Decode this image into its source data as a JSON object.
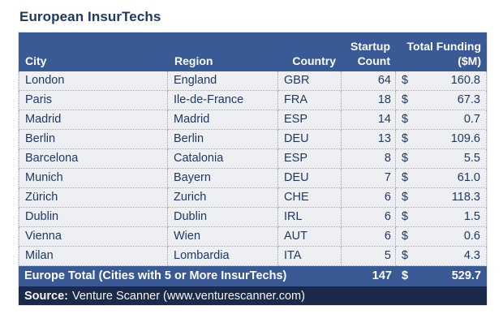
{
  "title": "European InsurTechs",
  "colors": {
    "header_bg": "#3A5A96",
    "total_bg": "#3A5A96",
    "source_bg": "#1B294B",
    "row_bg": "#EDEFF3",
    "text_navy": "#203864",
    "header_text": "#FFFFFF",
    "dotted_border": "#8FA6CC"
  },
  "table": {
    "headers": {
      "city": "City",
      "region": "Region",
      "country": "Country",
      "count": "Startup Count",
      "funding": "Total Funding ($M)"
    },
    "currency_symbol": "$",
    "rows": [
      {
        "city": "London",
        "region": "England",
        "country": "GBR",
        "count": "64",
        "funding": "160.8"
      },
      {
        "city": "Paris",
        "region": "Ile-de-France",
        "country": "FRA",
        "count": "18",
        "funding": "67.3"
      },
      {
        "city": "Madrid",
        "region": "Madrid",
        "country": "ESP",
        "count": "14",
        "funding": "0.7"
      },
      {
        "city": "Berlin",
        "region": "Berlin",
        "country": "DEU",
        "count": "13",
        "funding": "109.6"
      },
      {
        "city": "Barcelona",
        "region": "Catalonia",
        "country": "ESP",
        "count": "8",
        "funding": "5.5"
      },
      {
        "city": "Munich",
        "region": "Bayern",
        "country": "DEU",
        "count": "7",
        "funding": "61.0"
      },
      {
        "city": "Zürich",
        "region": "Zurich",
        "country": "CHE",
        "count": "6",
        "funding": "118.3"
      },
      {
        "city": "Dublin",
        "region": "Dublin",
        "country": "IRL",
        "count": "6",
        "funding": "1.5"
      },
      {
        "city": "Vienna",
        "region": "Wien",
        "country": "AUT",
        "count": "6",
        "funding": "0.6"
      },
      {
        "city": "Milan",
        "region": "Lombardia",
        "country": "ITA",
        "count": "5",
        "funding": "4.3"
      }
    ],
    "total": {
      "label": "Europe Total (Cities with 5 or More InsurTechs)",
      "count": "147",
      "funding": "529.7"
    },
    "source": {
      "label": "Source:",
      "text": "Venture Scanner (www.venturescanner.com)"
    }
  },
  "chart_data": {
    "type": "table",
    "title": "European InsurTechs",
    "columns": [
      "City",
      "Region",
      "Country",
      "Startup Count",
      "Total Funding ($M)"
    ],
    "rows": [
      [
        "London",
        "England",
        "GBR",
        64,
        160.8
      ],
      [
        "Paris",
        "Ile-de-France",
        "FRA",
        18,
        67.3
      ],
      [
        "Madrid",
        "Madrid",
        "ESP",
        14,
        0.7
      ],
      [
        "Berlin",
        "Berlin",
        "DEU",
        13,
        109.6
      ],
      [
        "Barcelona",
        "Catalonia",
        "ESP",
        8,
        5.5
      ],
      [
        "Munich",
        "Bayern",
        "DEU",
        7,
        61.0
      ],
      [
        "Zürich",
        "Zurich",
        "CHE",
        6,
        118.3
      ],
      [
        "Dublin",
        "Dublin",
        "IRL",
        6,
        1.5
      ],
      [
        "Vienna",
        "Wien",
        "AUT",
        6,
        0.6
      ],
      [
        "Milan",
        "Lombardia",
        "ITA",
        5,
        4.3
      ]
    ],
    "total_row": [
      "Europe Total (Cities with 5 or More InsurTechs)",
      147,
      529.7
    ],
    "source": "Source: Venture Scanner (www.venturescanner.com)",
    "currency": "$",
    "units": "millions USD"
  }
}
